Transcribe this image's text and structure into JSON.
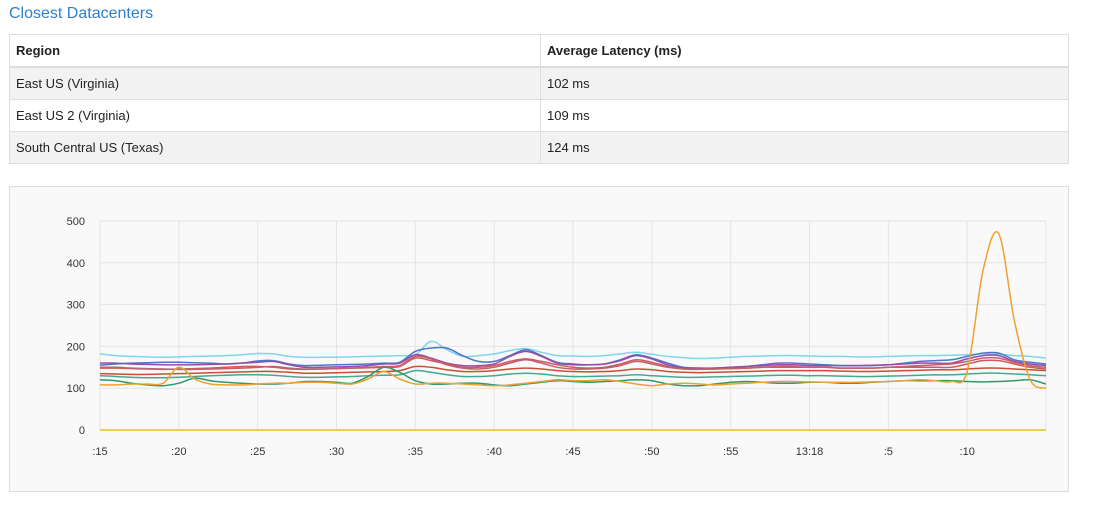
{
  "title": "Closest Datacenters",
  "table": {
    "headers": [
      "Region",
      "Average Latency (ms)"
    ],
    "rows": [
      [
        "East US (Virginia)",
        "102 ms"
      ],
      [
        "East US 2 (Virginia)",
        "109 ms"
      ],
      [
        "South Central US (Texas)",
        "124 ms"
      ]
    ]
  },
  "chart_data": {
    "type": "line",
    "xlabel": "",
    "ylabel": "",
    "ylim": [
      0,
      500
    ],
    "yticks": [
      0,
      100,
      200,
      300,
      400,
      500
    ],
    "xticks": [
      ":15",
      ":20",
      ":25",
      ":30",
      ":35",
      ":40",
      ":45",
      ":50",
      ":55",
      "13:18",
      ":5",
      ":10"
    ],
    "grid": true,
    "legend": "none",
    "x": [
      0,
      1,
      2,
      3,
      4,
      5,
      6,
      7,
      8,
      9,
      10,
      11,
      12,
      13,
      14,
      15,
      16,
      17,
      18,
      19,
      20,
      21,
      22,
      23,
      24,
      25,
      26,
      27,
      28,
      29,
      30,
      31,
      32,
      33,
      34,
      35,
      36,
      37,
      38,
      39,
      40,
      41,
      42,
      43,
      44,
      45,
      46,
      47,
      48,
      49,
      50,
      51,
      52,
      53,
      54,
      55,
      56,
      57,
      58,
      59,
      60
    ],
    "series": [
      {
        "color": "#7fd6e8",
        "values": [
          182,
          178,
          176,
          175,
          174,
          175,
          176,
          177,
          178,
          180,
          183,
          182,
          176,
          174,
          174,
          174,
          175,
          176,
          177,
          178,
          180,
          212,
          192,
          176,
          178,
          182,
          190,
          195,
          186,
          178,
          177,
          176,
          178,
          182,
          186,
          181,
          176,
          173,
          171,
          172,
          174,
          176,
          177,
          178,
          178,
          177,
          176,
          176,
          175,
          175,
          176,
          177,
          178,
          178,
          179,
          180,
          182,
          181,
          178,
          176,
          172
        ]
      },
      {
        "color": "#4a78c8",
        "values": [
          155,
          158,
          160,
          161,
          162,
          162,
          161,
          160,
          158,
          160,
          165,
          166,
          158,
          154,
          155,
          156,
          157,
          158,
          160,
          162,
          188,
          196,
          196,
          178,
          164,
          164,
          178,
          192,
          178,
          162,
          158,
          156,
          158,
          168,
          180,
          172,
          160,
          150,
          148,
          148,
          150,
          152,
          156,
          160,
          160,
          158,
          156,
          154,
          154,
          154,
          156,
          160,
          164,
          166,
          168,
          176,
          184,
          184,
          168,
          162,
          158
        ]
      },
      {
        "color": "#9a4aa8",
        "values": [
          160,
          160,
          158,
          157,
          156,
          156,
          156,
          157,
          158,
          160,
          162,
          164,
          156,
          150,
          150,
          151,
          152,
          154,
          158,
          160,
          180,
          172,
          160,
          154,
          154,
          158,
          176,
          188,
          176,
          160,
          156,
          156,
          158,
          166,
          178,
          170,
          156,
          148,
          148,
          148,
          150,
          152,
          154,
          156,
          156,
          154,
          154,
          154,
          154,
          155,
          156,
          158,
          160,
          160,
          160,
          170,
          178,
          178,
          164,
          158,
          154
        ]
      },
      {
        "color": "#d05a5a",
        "values": [
          148,
          148,
          147,
          146,
          145,
          146,
          147,
          148,
          150,
          152,
          152,
          150,
          146,
          145,
          146,
          147,
          148,
          149,
          150,
          152,
          172,
          166,
          158,
          150,
          150,
          154,
          164,
          170,
          164,
          156,
          150,
          148,
          150,
          158,
          168,
          162,
          152,
          146,
          145,
          146,
          147,
          148,
          150,
          152,
          152,
          150,
          150,
          148,
          148,
          148,
          150,
          150,
          150,
          150,
          150,
          158,
          166,
          166,
          158,
          150,
          146
        ]
      },
      {
        "color": "#c06070",
        "values": [
          150,
          150,
          148,
          147,
          146,
          145,
          145,
          146,
          147,
          148,
          150,
          152,
          148,
          146,
          146,
          147,
          148,
          150,
          152,
          154,
          176,
          170,
          156,
          148,
          146,
          150,
          160,
          168,
          160,
          150,
          146,
          146,
          148,
          154,
          164,
          158,
          150,
          146,
          146,
          146,
          147,
          148,
          150,
          150,
          150,
          150,
          150,
          148,
          148,
          148,
          150,
          152,
          154,
          156,
          158,
          164,
          172,
          172,
          162,
          154,
          150
        ]
      },
      {
        "color": "#c85030",
        "values": [
          135,
          134,
          133,
          133,
          134,
          135,
          136,
          137,
          138,
          139,
          140,
          140,
          138,
          136,
          136,
          137,
          138,
          139,
          140,
          142,
          152,
          150,
          144,
          140,
          140,
          142,
          146,
          148,
          146,
          142,
          140,
          139,
          140,
          142,
          146,
          144,
          140,
          138,
          137,
          138,
          139,
          140,
          141,
          142,
          142,
          142,
          142,
          141,
          140,
          140,
          141,
          142,
          143,
          144,
          144,
          146,
          148,
          148,
          146,
          144,
          142
        ]
      },
      {
        "color": "#46a890",
        "values": [
          130,
          128,
          126,
          125,
          125,
          126,
          128,
          130,
          131,
          132,
          132,
          131,
          128,
          126,
          126,
          127,
          128,
          130,
          131,
          132,
          142,
          138,
          132,
          128,
          128,
          130,
          134,
          136,
          134,
          130,
          128,
          128,
          129,
          130,
          132,
          130,
          128,
          126,
          126,
          127,
          128,
          129,
          130,
          131,
          131,
          130,
          130,
          129,
          128,
          128,
          129,
          130,
          131,
          132,
          132,
          134,
          136,
          136,
          134,
          132,
          130
        ]
      },
      {
        "color": "#2e9a6a",
        "values": [
          120,
          118,
          112,
          108,
          106,
          112,
          124,
          118,
          114,
          112,
          110,
          110,
          112,
          116,
          116,
          114,
          112,
          128,
          150,
          138,
          118,
          110,
          110,
          112,
          112,
          108,
          106,
          110,
          114,
          118,
          116,
          114,
          116,
          118,
          120,
          118,
          110,
          106,
          106,
          110,
          114,
          116,
          114,
          112,
          112,
          114,
          114,
          112,
          112,
          114,
          116,
          118,
          118,
          118,
          118,
          116,
          115,
          116,
          118,
          120,
          110
        ]
      },
      {
        "color": "#f0a030",
        "values": [
          108,
          108,
          110,
          110,
          112,
          150,
          122,
          110,
          108,
          108,
          110,
          112,
          112,
          114,
          114,
          112,
          110,
          122,
          140,
          122,
          110,
          112,
          112,
          110,
          108,
          106,
          108,
          112,
          116,
          120,
          118,
          118,
          120,
          116,
          110,
          106,
          110,
          112,
          110,
          108,
          110,
          112,
          114,
          116,
          116,
          115,
          114,
          114,
          114,
          115,
          116,
          118,
          120,
          118,
          116,
          140,
          380,
          470,
          260,
          120,
          100
        ]
      },
      {
        "color": "#e8c020",
        "values": [
          0,
          0,
          0,
          0,
          0,
          0,
          0,
          0,
          0,
          0,
          0,
          0,
          0,
          0,
          0,
          0,
          0,
          0,
          0,
          0,
          0,
          0,
          0,
          0,
          0,
          0,
          0,
          0,
          0,
          0,
          0,
          0,
          0,
          0,
          0,
          0,
          0,
          0,
          0,
          0,
          0,
          0,
          0,
          0,
          0,
          0,
          0,
          0,
          0,
          0,
          0,
          0,
          0,
          0,
          0,
          0,
          0,
          0,
          0,
          0,
          0
        ]
      }
    ]
  }
}
